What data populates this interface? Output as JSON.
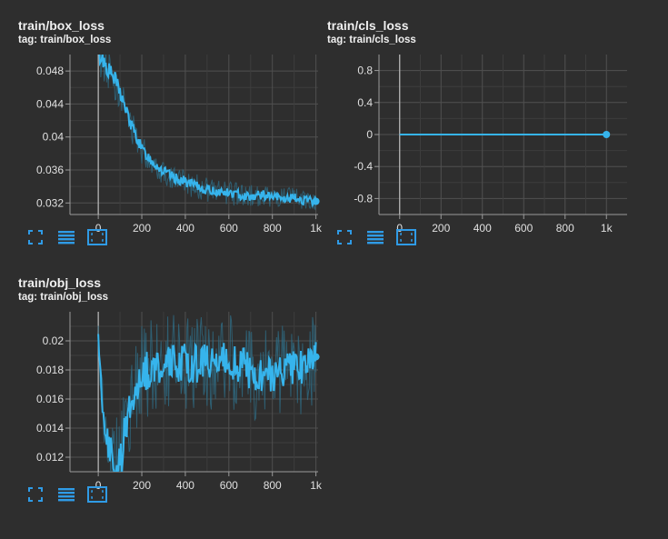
{
  "colors": {
    "background": "#2e2e2e",
    "grid": "#505050",
    "axis": "#9a9a9a",
    "line": "#36b4ec",
    "raw_line": "#2f6f88",
    "icon": "#2f9be6"
  },
  "toolbar_icons": [
    "fullscreen-icon",
    "data-table-icon",
    "fit-domain-icon"
  ],
  "charts": [
    {
      "title": "train/box_loss",
      "tag": "tag: train/box_loss"
    },
    {
      "title": "train/cls_loss",
      "tag": "tag: train/cls_loss"
    },
    {
      "title": "train/obj_loss",
      "tag": "tag: train/obj_loss"
    }
  ],
  "chart_data": [
    {
      "type": "line",
      "title": "train/box_loss",
      "xlabel": "",
      "ylabel": "",
      "x_ticks": [
        0,
        200,
        400,
        600,
        800,
        1000
      ],
      "x_tick_labels": [
        "0",
        "200",
        "400",
        "600",
        "800",
        "1k"
      ],
      "y_ticks": [
        0.032,
        0.036,
        0.04,
        0.044,
        0.048
      ],
      "y_tick_labels": [
        "0.032",
        "0.036",
        "0.04",
        "0.044",
        "0.048"
      ],
      "xlim": [
        -130,
        1010
      ],
      "ylim": [
        0.0306,
        0.05
      ],
      "grid": true,
      "x": [
        0,
        20,
        50,
        80,
        100,
        120,
        150,
        180,
        200,
        250,
        300,
        350,
        400,
        450,
        500,
        550,
        600,
        650,
        700,
        750,
        800,
        850,
        900,
        950,
        1000
      ],
      "values": [
        0.05,
        0.0495,
        0.048,
        0.0468,
        0.0455,
        0.0438,
        0.0415,
        0.0398,
        0.0385,
        0.037,
        0.0358,
        0.035,
        0.0346,
        0.034,
        0.0336,
        0.0334,
        0.0332,
        0.033,
        0.0328,
        0.033,
        0.0327,
        0.0325,
        0.0326,
        0.0323,
        0.0322
      ],
      "raw_band": [
        0.0025,
        0.0025,
        0.0025,
        0.0022,
        0.002,
        0.002,
        0.0018,
        0.0017,
        0.0016,
        0.0015,
        0.0015,
        0.0014,
        0.0014,
        0.0014,
        0.0013,
        0.0013,
        0.0013,
        0.0013,
        0.0013,
        0.0013,
        0.0012,
        0.0012,
        0.0012,
        0.0012,
        0.0012
      ]
    },
    {
      "type": "line",
      "title": "train/cls_loss",
      "xlabel": "",
      "ylabel": "",
      "x_ticks": [
        0,
        200,
        400,
        600,
        800,
        1000
      ],
      "x_tick_labels": [
        "0",
        "200",
        "400",
        "600",
        "800",
        "1k"
      ],
      "y_ticks": [
        -0.8,
        -0.4,
        0,
        0.4,
        0.8
      ],
      "y_tick_labels": [
        "-0.8",
        "-0.4",
        "0",
        "0.4",
        "0.8"
      ],
      "xlim": [
        -100,
        1100
      ],
      "ylim": [
        -1.0,
        1.0
      ],
      "grid": true,
      "x": [
        0,
        1000
      ],
      "values": [
        0,
        0
      ],
      "raw_band": [
        0,
        0
      ]
    },
    {
      "type": "line",
      "title": "train/obj_loss",
      "xlabel": "",
      "ylabel": "",
      "x_ticks": [
        0,
        200,
        400,
        600,
        800,
        1000
      ],
      "x_tick_labels": [
        "0",
        "200",
        "400",
        "600",
        "800",
        "1k"
      ],
      "y_ticks": [
        0.012,
        0.014,
        0.016,
        0.018,
        0.02
      ],
      "y_tick_labels": [
        "0.012",
        "0.014",
        "0.016",
        "0.018",
        "0.02"
      ],
      "xlim": [
        -130,
        1010
      ],
      "ylim": [
        0.011,
        0.022
      ],
      "grid": true,
      "x": [
        0,
        10,
        30,
        50,
        80,
        100,
        120,
        150,
        180,
        200,
        250,
        300,
        350,
        400,
        450,
        500,
        550,
        600,
        650,
        700,
        750,
        800,
        850,
        900,
        950,
        1000
      ],
      "values": [
        0.0205,
        0.0175,
        0.014,
        0.0125,
        0.0116,
        0.0112,
        0.0135,
        0.016,
        0.0172,
        0.0178,
        0.0182,
        0.0183,
        0.0185,
        0.0186,
        0.0184,
        0.0185,
        0.0187,
        0.0186,
        0.0185,
        0.0178,
        0.0176,
        0.0178,
        0.0182,
        0.0184,
        0.018,
        0.0189
      ],
      "raw_band": [
        0.001,
        0.0015,
        0.002,
        0.0025,
        0.003,
        0.003,
        0.003,
        0.003,
        0.003,
        0.003,
        0.003,
        0.003,
        0.003,
        0.003,
        0.003,
        0.003,
        0.003,
        0.003,
        0.003,
        0.003,
        0.003,
        0.003,
        0.003,
        0.003,
        0.003,
        0.003
      ]
    }
  ]
}
